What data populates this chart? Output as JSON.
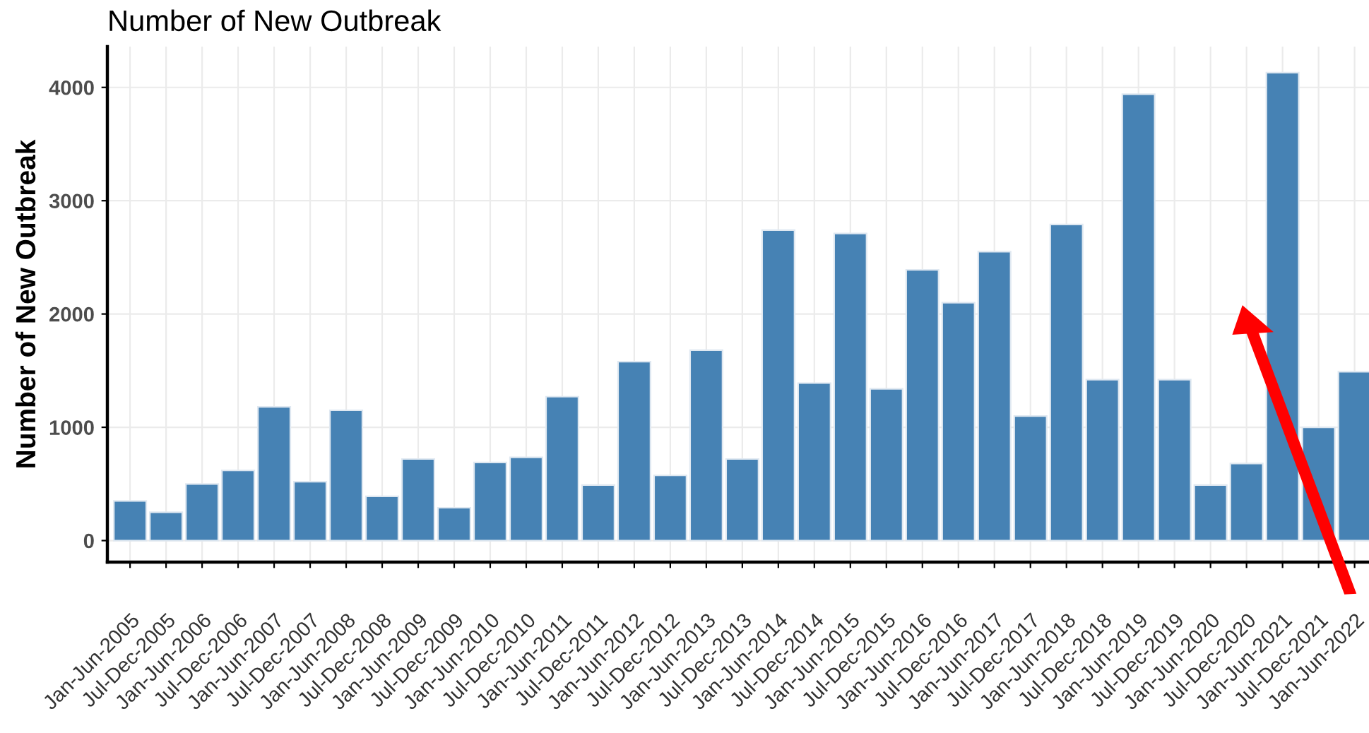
{
  "chart_data": {
    "type": "bar",
    "title": "Number of New Outbreak",
    "ylabel": "Number of New Outbreak",
    "categories": [
      "Jan-Jun-2005",
      "Jul-Dec-2005",
      "Jan-Jun-2006",
      "Jul-Dec-2006",
      "Jan-Jun-2007",
      "Jul-Dec-2007",
      "Jan-Jun-2008",
      "Jul-Dec-2008",
      "Jan-Jun-2009",
      "Jul-Dec-2009",
      "Jan-Jun-2010",
      "Jul-Dec-2010",
      "Jan-Jun-2011",
      "Jul-Dec-2011",
      "Jan-Jun-2012",
      "Jul-Dec-2012",
      "Jan-Jun-2013",
      "Jul-Dec-2013",
      "Jan-Jun-2014",
      "Jul-Dec-2014",
      "Jan-Jun-2015",
      "Jul-Dec-2015",
      "Jan-Jun-2016",
      "Jul-Dec-2016",
      "Jan-Jun-2017",
      "Jul-Dec-2017",
      "Jan-Jun-2018",
      "Jul-Dec-2018",
      "Jan-Jun-2019",
      "Jul-Dec-2019",
      "Jan-Jun-2020",
      "Jul-Dec-2020",
      "Jan-Jun-2021",
      "Jul-Dec-2021",
      "Jan-Jun-2022"
    ],
    "values": [
      350,
      250,
      500,
      620,
      1180,
      520,
      1150,
      390,
      720,
      290,
      690,
      735,
      1270,
      490,
      1580,
      575,
      1680,
      720,
      2740,
      1390,
      2710,
      1340,
      2390,
      2100,
      2550,
      1100,
      2790,
      1420,
      3940,
      1420,
      490,
      680,
      4130,
      1000,
      1490
    ],
    "color": "#4682b4",
    "ylim": [
      -190,
      4360
    ],
    "yticks": [
      0,
      1000,
      2000,
      3000,
      4000
    ],
    "grid": true,
    "legend": false
  }
}
